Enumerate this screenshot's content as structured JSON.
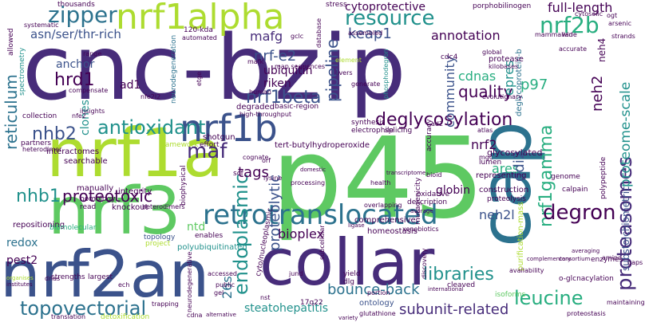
{
  "palette": {
    "dark_purple": "#440154",
    "indigo": "#472c7a",
    "blue": "#3b528b",
    "steel_blue": "#2c728e",
    "teal": "#21918c",
    "sea_green": "#28ae80",
    "green": "#5ec962",
    "lime": "#addc30",
    "yellow": "#fde725"
  },
  "words": [
    "cnc-bzip",
    "p45",
    "nrf3",
    "nrf1a",
    "nrf2an",
    "collar",
    "cap",
    "nrf1alpha",
    "nrf1b",
    "retrotranslocated",
    "endoplasmic",
    "proteasomes",
    "nrf1gamma",
    "antioxidant",
    "zipper",
    "resource",
    "nrf2b",
    "degron",
    "leucine",
    "topovectorial",
    "proteome-scale",
    "nrf1beta",
    "deglycosylation",
    "libraries",
    "nhb2",
    "nhb1",
    "hrd1",
    "reticulum",
    "pipeline",
    "proteotoxic",
    "quality",
    "community",
    "maf",
    "tags",
    "keap1",
    "mafg",
    "nrf-e2",
    "annotation",
    "cdnas",
    "asn/ser/thr-rich",
    "cytoprotective",
    "full-length",
    "ubiquitin",
    "riken",
    "p97",
    "neh2",
    "epres",
    "ares",
    "nrf2",
    "ddi2",
    "26s",
    "bounce-back",
    "subunit-related",
    "steatohepatitis",
    "bioplex",
    "proteolytic",
    "globin",
    "neh2l",
    "redox",
    "pest2",
    "anchor",
    "ad1",
    "clones",
    "neh4",
    "glycosylated",
    "tert-butylhydroperoxide",
    "shotgun",
    "deglycoprotein-b",
    "porphobilinogen",
    "thousands",
    "mammalian",
    "ntd",
    "construction",
    "proteolysis",
    "genome",
    "polyubiquitinated",
    "homeostasis",
    "ontology",
    "knockout",
    "manually",
    "integrity",
    "repositioning",
    "biomolecular",
    "topology",
    "substoichiometric",
    "purification-mass",
    "o-glcnacylation",
    "mutagenicity",
    "representing",
    "comprehensive",
    "description",
    "oxidative",
    "polypeptide",
    "enzymes",
    "isoforms",
    "calpain",
    "accuracy",
    "interactomes",
    "searchable",
    "framework",
    "degraded",
    "basic-region",
    "synthesis",
    "electrophile",
    "splicing",
    "lumen",
    "effort",
    "biophysical",
    "cognate",
    "scf",
    "partners",
    "homology",
    "read",
    "cleaved",
    "yield",
    "dlg",
    "jund",
    "strengths",
    "largest",
    "spectrometry",
    "allowed",
    "systematic",
    "120-kda",
    "automated",
    "neurodegeneration",
    "mafk",
    "map sequences",
    "etge",
    "gclc",
    "database",
    "assembled",
    "wide",
    "cytosolic",
    "ogt",
    "arsenic",
    "strands",
    "global",
    "livers",
    "element",
    "generate",
    "phosphodegron",
    "kilobases",
    "evolutionary",
    "accurate",
    "protease",
    "cdc4",
    "range",
    "compensate",
    "collection",
    "nfe2",
    "nfe2l2",
    "heterodimer",
    "insights",
    "high-throughput",
    "stress",
    "atlas",
    "ad2",
    "overlapping",
    "processing",
    "health",
    "domestic",
    "transcriptome",
    "bioid",
    "mgc",
    "amino",
    "consortium",
    "averaging",
    "gaps",
    "maintaining",
    "proteostasis",
    "availability",
    "complementary",
    "portion",
    "discovery",
    "international",
    "trapping",
    "cdna",
    "alternative",
    "translation",
    "detoxification",
    "17q22",
    "gel",
    "public",
    "accessed",
    "institutes",
    "organises",
    "enables",
    "project",
    "dnas",
    "ech",
    "glutathione",
    "ligase",
    "xenobiotics",
    "average",
    "heterodimers",
    "variety",
    "cyto/nucleoplasmic",
    "neurodegenerative",
    "subcellular",
    "nst",
    "orf",
    "human",
    "lysine"
  ]
}
